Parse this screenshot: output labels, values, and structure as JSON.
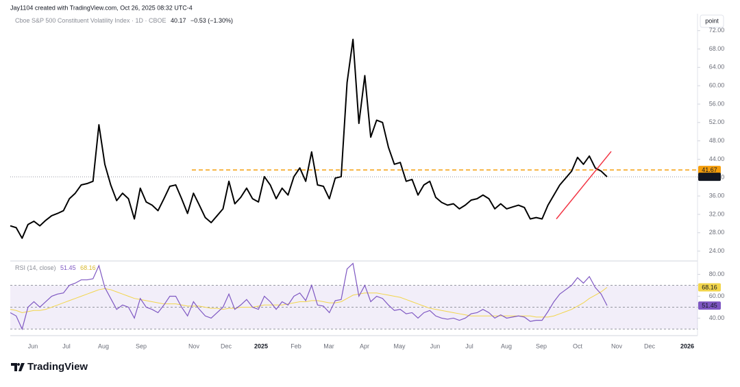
{
  "header": "Jay1104 created with TradingView.com, Oct 26, 2025 08:32 UTC-4",
  "footer": "TradingView",
  "x_labels": [
    "Jun",
    "Jul",
    "Aug",
    "Sep",
    "Nov",
    "Dec",
    "2025",
    "Feb",
    "Mar",
    "Apr",
    "May",
    "Jun",
    "Jul",
    "Aug",
    "Sep",
    "Oct",
    "Nov",
    "Dec",
    "2026"
  ],
  "chart_data": [
    {
      "type": "line",
      "title": "Cboe S&P 500 Constituent Volatility Index · 1D · CBOE",
      "change": "−0.53 (−1.30%)",
      "unit": "point",
      "series": [
        {
          "color": "#000000",
          "values": [
            29.5,
            29.1,
            26.8,
            29.8,
            30.5,
            29.5,
            30.7,
            31.7,
            32.2,
            32.8,
            35.4,
            36.6,
            38.4,
            38.7,
            39.2,
            51.5,
            42.9,
            38.4,
            35.0,
            36.6,
            35.4,
            31.0,
            37.7,
            34.7,
            34.0,
            32.8,
            35.4,
            38.1,
            38.4,
            35.4,
            32.2,
            36.6,
            34.0,
            31.3,
            30.2,
            31.7,
            33.2,
            39.2,
            34.3,
            35.7,
            37.7,
            35.4,
            34.7,
            40.2,
            38.4,
            35.4,
            37.7,
            36.2,
            40.2,
            42.1,
            39.2,
            45.6,
            38.4,
            38.1,
            35.4,
            39.9,
            40.2,
            60.7,
            70.1,
            51.8,
            62.2,
            48.8,
            52.5,
            52.0,
            46.6,
            42.9,
            43.3,
            39.2,
            39.6,
            36.2,
            38.4,
            39.2,
            35.7,
            34.6,
            34.0,
            34.3,
            33.2,
            34.0,
            35.1,
            35.4,
            36.2,
            35.4,
            33.2,
            34.3,
            33.2,
            33.6,
            34.0,
            33.5,
            31.0,
            31.3,
            31.0,
            34.0,
            36.2,
            38.4,
            39.9,
            41.4,
            44.4,
            42.9,
            44.7,
            42.1,
            41.4,
            40.17
          ]
        }
      ],
      "ylim": [
        22,
        73
      ],
      "yticks": [
        {
          "value": 24,
          "label": "24.00"
        },
        {
          "value": 28,
          "label": "28.00"
        },
        {
          "value": 32,
          "label": "32.00"
        },
        {
          "value": 36,
          "label": "36.00"
        },
        {
          "value": 40,
          "label": "40.00"
        },
        {
          "value": 44,
          "label": "44.00"
        },
        {
          "value": 48,
          "label": "48.00"
        },
        {
          "value": 52,
          "label": "52.00"
        },
        {
          "value": 56,
          "label": "56.00"
        },
        {
          "value": 60,
          "label": "60.00"
        },
        {
          "value": 64,
          "label": "64.00"
        },
        {
          "value": 68,
          "label": "68.00"
        },
        {
          "value": 72,
          "label": "72.00"
        }
      ],
      "level": 41.67,
      "level_color": "#f59e0b",
      "trendline": [
        31.0,
        45.7
      ],
      "trend_color": "#f23645"
    },
    {
      "type": "rsi",
      "title": "RSI (14, close)",
      "series": [
        {
          "color": "#7e57c2",
          "values": [
            45,
            42,
            30,
            50,
            55,
            50,
            55,
            60,
            62,
            63,
            70,
            72,
            75,
            75,
            76,
            88,
            68,
            58,
            48,
            52,
            50,
            40,
            58,
            50,
            48,
            45,
            52,
            60,
            60,
            50,
            42,
            55,
            48,
            42,
            40,
            45,
            50,
            62,
            48,
            52,
            57,
            50,
            48,
            60,
            55,
            48,
            55,
            52,
            60,
            63,
            56,
            70,
            52,
            51,
            45,
            56,
            57,
            85,
            90,
            60,
            70,
            55,
            60,
            58,
            52,
            47,
            48,
            44,
            45,
            40,
            45,
            47,
            42,
            40,
            39,
            40,
            38,
            40,
            44,
            45,
            48,
            45,
            40,
            43,
            40,
            41,
            42,
            41,
            37,
            38,
            38,
            46,
            55,
            62,
            66,
            70,
            77,
            72,
            78,
            68,
            62,
            51.45
          ]
        },
        {
          "color": "#f2d54a",
          "values": [
            48,
            47,
            45,
            46,
            47,
            47,
            48,
            50,
            52,
            54,
            56,
            58,
            60,
            62,
            64,
            66,
            67,
            66,
            64,
            62,
            60,
            58,
            57,
            56,
            55,
            54,
            53,
            53,
            53,
            52,
            51,
            51,
            51,
            50,
            49,
            49,
            48,
            49,
            49,
            50,
            50,
            50,
            51,
            52,
            52,
            52,
            52,
            53,
            54,
            55,
            55,
            56,
            56,
            55,
            54,
            54,
            55,
            58,
            61,
            62,
            63,
            63,
            63,
            62,
            61,
            60,
            59,
            57,
            55,
            53,
            51,
            49,
            48,
            47,
            46,
            45,
            44,
            43,
            42,
            42,
            42,
            42,
            42,
            42,
            42,
            42,
            42,
            42,
            42,
            41,
            41,
            41,
            42,
            44,
            46,
            48,
            51,
            54,
            58,
            61,
            64,
            68.16
          ]
        }
      ],
      "ylim": [
        24,
        91
      ],
      "yticks": [
        {
          "value": 40,
          "label": "40.00"
        },
        {
          "value": 60,
          "label": "60.00"
        },
        {
          "value": 80,
          "label": "80.00"
        }
      ],
      "bands": [
        30,
        50,
        70
      ]
    }
  ]
}
